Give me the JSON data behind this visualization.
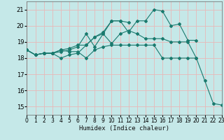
{
  "xlabel": "Humidex (Indice chaleur)",
  "xlim": [
    0,
    23
  ],
  "ylim": [
    14.5,
    21.5
  ],
  "yticks": [
    15,
    16,
    17,
    18,
    19,
    20,
    21
  ],
  "xticks": [
    0,
    1,
    2,
    3,
    4,
    5,
    6,
    7,
    8,
    9,
    10,
    11,
    12,
    13,
    14,
    15,
    16,
    17,
    18,
    19,
    20,
    21,
    22,
    23
  ],
  "bg_color": "#c5e8e8",
  "grid_color": "#e8b8b8",
  "line_color": "#1a7a6e",
  "lines": [
    {
      "x": [
        0,
        1,
        2,
        3,
        4,
        5,
        6,
        7,
        8,
        9,
        10,
        11,
        12,
        13,
        14,
        15,
        16,
        17,
        18,
        19,
        20,
        21,
        22,
        23
      ],
      "y": [
        18.5,
        18.2,
        18.3,
        18.3,
        18.5,
        18.4,
        18.4,
        18.0,
        18.5,
        18.7,
        18.8,
        18.8,
        18.8,
        18.8,
        18.8,
        18.8,
        18.0,
        18.0,
        18.0,
        18.0,
        18.0,
        16.6,
        15.2,
        15.1
      ]
    },
    {
      "x": [
        0,
        1,
        2,
        3,
        4,
        5,
        6,
        7,
        8,
        9,
        10,
        11,
        12,
        13,
        14,
        15,
        16,
        17,
        18,
        19,
        20
      ],
      "y": [
        18.5,
        18.2,
        18.3,
        18.3,
        18.5,
        18.6,
        18.8,
        18.8,
        19.3,
        19.5,
        18.9,
        19.5,
        19.7,
        19.5,
        19.2,
        19.2,
        19.2,
        19.0,
        19.0,
        19.0,
        18.0
      ]
    },
    {
      "x": [
        0,
        1,
        2,
        3,
        4,
        5,
        6,
        7,
        8,
        9,
        10,
        11,
        12
      ],
      "y": [
        18.5,
        18.2,
        18.3,
        18.3,
        18.4,
        18.5,
        18.7,
        19.5,
        18.7,
        19.5,
        20.3,
        20.3,
        20.2
      ]
    },
    {
      "x": [
        0,
        1,
        2,
        3,
        4,
        5,
        6,
        7,
        8,
        9,
        10,
        11,
        12,
        13,
        14,
        15,
        16,
        17,
        18,
        19,
        20
      ],
      "y": [
        18.5,
        18.2,
        18.3,
        18.3,
        18.0,
        18.2,
        18.3,
        18.8,
        19.3,
        19.6,
        20.3,
        20.3,
        19.6,
        20.3,
        20.3,
        21.0,
        20.9,
        20.0,
        20.1,
        19.1,
        19.1
      ]
    }
  ]
}
